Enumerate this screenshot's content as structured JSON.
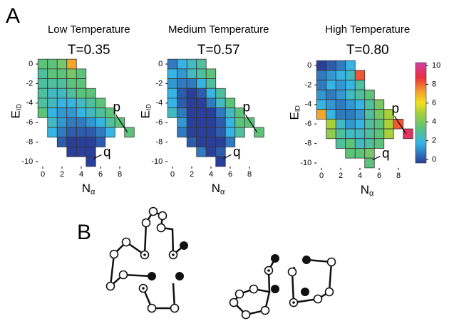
{
  "panel_labels": [
    "A",
    "B"
  ],
  "colorbar": {
    "lim": [
      0,
      10
    ],
    "ticks": [
      0,
      2,
      4,
      6,
      8,
      10
    ]
  },
  "chart_data": [
    {
      "type": "heatmap",
      "title": "Low Temperature",
      "subtitle": "T=0.35",
      "x": [
        0,
        1,
        2,
        3,
        4,
        5,
        6,
        7,
        8,
        9
      ],
      "y": [
        0,
        -1,
        -2,
        -3,
        -4,
        -5,
        -6,
        -7,
        -8,
        -9,
        -10
      ],
      "xlim": [
        -0.5,
        9.5
      ],
      "ylim": [
        -10.5,
        0.5
      ],
      "xticks": [
        0,
        2,
        4,
        6,
        8
      ],
      "yticks": [
        0,
        -2,
        -4,
        -6,
        -8,
        -10
      ],
      "xlabel": "N",
      "xlabel_sub": "α",
      "ylabel": "E",
      "ylabel_sub": "ID",
      "annotations": [
        "p",
        "q"
      ],
      "values": [
        [
          3.5,
          3.5,
          4,
          7,
          null,
          null,
          null,
          null,
          null,
          null
        ],
        [
          3,
          3.5,
          3.5,
          4,
          3.5,
          null,
          null,
          null,
          null,
          null
        ],
        [
          3,
          3,
          3,
          3.5,
          3.5,
          null,
          null,
          null,
          null,
          null
        ],
        [
          3,
          2.5,
          2.5,
          3,
          3.5,
          3.5,
          null,
          null,
          null,
          null
        ],
        [
          3,
          2.5,
          2,
          2,
          2.5,
          3,
          3.5,
          null,
          null,
          null
        ],
        [
          3.5,
          2,
          1.5,
          1.5,
          2,
          2.5,
          3,
          3.5,
          null,
          null
        ],
        [
          null,
          2.5,
          1.5,
          1,
          1,
          1.5,
          2,
          3,
          3.5,
          null
        ],
        [
          null,
          2,
          1,
          0.5,
          0.5,
          0.5,
          1,
          2,
          null,
          3.5
        ],
        [
          null,
          null,
          0.5,
          0,
          0,
          0,
          0.5,
          null,
          null,
          null
        ],
        [
          null,
          null,
          null,
          0,
          0,
          0,
          null,
          null,
          null,
          null
        ],
        [
          null,
          null,
          null,
          null,
          null,
          0,
          null,
          null,
          null,
          null
        ]
      ]
    },
    {
      "type": "heatmap",
      "title": "Medium Temperature",
      "subtitle": "T=0.57",
      "x": [
        0,
        1,
        2,
        3,
        4,
        5,
        6,
        7,
        8,
        9
      ],
      "y": [
        0,
        -1,
        -2,
        -3,
        -4,
        -5,
        -6,
        -7,
        -8,
        -9,
        -10
      ],
      "xlim": [
        -0.5,
        9.5
      ],
      "ylim": [
        -10.5,
        0.5
      ],
      "xticks": [
        0,
        2,
        4,
        6,
        8
      ],
      "yticks": [
        0,
        -2,
        -4,
        -6,
        -8,
        -10
      ],
      "xlabel": "N",
      "xlabel_sub": "α",
      "ylabel": "E",
      "ylabel_sub": "ID",
      "annotations": [
        "p",
        "q"
      ],
      "values": [
        [
          1,
          2,
          2.5,
          3,
          null,
          null,
          null,
          null,
          null,
          null
        ],
        [
          2,
          1.5,
          2.5,
          3,
          3.5,
          null,
          null,
          null,
          null,
          null
        ],
        [
          1.5,
          1,
          1,
          2,
          3,
          null,
          null,
          null,
          null,
          null
        ],
        [
          2,
          0.5,
          0,
          0.5,
          2,
          3,
          null,
          null,
          null,
          null
        ],
        [
          2,
          0.5,
          0,
          0,
          1,
          2.5,
          3.5,
          null,
          null,
          null
        ],
        [
          2.5,
          1,
          0,
          0,
          0,
          1,
          2.5,
          3.5,
          null,
          null
        ],
        [
          null,
          1.5,
          0,
          0,
          0,
          0.5,
          2,
          3.5,
          3.5,
          null
        ],
        [
          null,
          1,
          0,
          0,
          0,
          0.5,
          2,
          3,
          null,
          3.5
        ],
        [
          null,
          null,
          0.5,
          0,
          0,
          0,
          1,
          null,
          null,
          null
        ],
        [
          null,
          null,
          null,
          1,
          0,
          0.5,
          null,
          null,
          null,
          null
        ],
        [
          null,
          null,
          null,
          null,
          null,
          0,
          null,
          null,
          null,
          null
        ]
      ]
    },
    {
      "type": "heatmap",
      "title": "High Temperature",
      "subtitle": "T=0.80",
      "x": [
        0,
        1,
        2,
        3,
        4,
        5,
        6,
        7,
        8,
        9
      ],
      "y": [
        0,
        -1,
        -2,
        -3,
        -4,
        -5,
        -6,
        -7,
        -8,
        -9,
        -10
      ],
      "xlim": [
        -0.5,
        9.5
      ],
      "ylim": [
        -10.5,
        0.5
      ],
      "xticks": [
        0,
        2,
        4,
        6,
        8
      ],
      "yticks": [
        0,
        -2,
        -4,
        -6,
        -8,
        -10
      ],
      "xlabel": "N",
      "xlabel_sub": "α",
      "ylabel": "E",
      "ylabel_sub": "ID",
      "annotations": [
        "p",
        "q"
      ],
      "values": [
        [
          0,
          0.5,
          1,
          2,
          null,
          null,
          null,
          null,
          null,
          null
        ],
        [
          1,
          1.5,
          2,
          2.5,
          8,
          null,
          null,
          null,
          null,
          null
        ],
        [
          1,
          2,
          1.5,
          2,
          3,
          null,
          null,
          null,
          null,
          null
        ],
        [
          1.5,
          1,
          1.5,
          2.5,
          3,
          3.5,
          null,
          null,
          null,
          null
        ],
        [
          2,
          1.5,
          1,
          1.5,
          2,
          3,
          4,
          null,
          null,
          null
        ],
        [
          7,
          2,
          1,
          1,
          1.5,
          3,
          4,
          5,
          null,
          null
        ],
        [
          null,
          5,
          2.5,
          1.5,
          2,
          3,
          3.5,
          5,
          8,
          null
        ],
        [
          null,
          4.5,
          3,
          2.5,
          2.5,
          3,
          3.5,
          5,
          null,
          9
        ],
        [
          null,
          null,
          3,
          3.5,
          2.5,
          3,
          3.5,
          null,
          null,
          null
        ],
        [
          null,
          null,
          null,
          3.5,
          3.5,
          4,
          null,
          null,
          null,
          null
        ],
        [
          null,
          null,
          null,
          null,
          null,
          3.5,
          null,
          null,
          null,
          null
        ]
      ]
    }
  ]
}
